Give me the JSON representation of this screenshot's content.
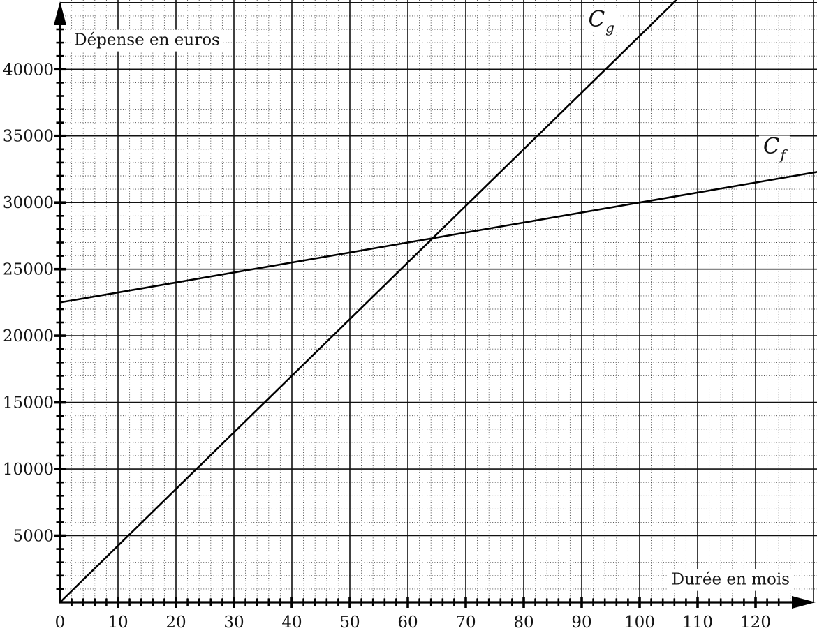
{
  "chart_data": {
    "type": "line",
    "title": "",
    "xlabel": "Durée en mois",
    "ylabel": "Dépense en euros",
    "xlim": [
      0,
      130.6
    ],
    "ylim": [
      0,
      45200
    ],
    "x_tick_labels": [
      0,
      10,
      20,
      30,
      40,
      50,
      60,
      70,
      80,
      90,
      100,
      110,
      120
    ],
    "y_tick_labels": [
      5000,
      10000,
      15000,
      20000,
      25000,
      30000,
      35000,
      40000
    ],
    "x_grid_lines": [
      10,
      20,
      30,
      40,
      50,
      60,
      70,
      80,
      90,
      100,
      110,
      120,
      130
    ],
    "y_grid_lines": [
      5000,
      10000,
      15000,
      20000,
      25000,
      30000,
      35000,
      40000,
      45000
    ],
    "x_minor_step": 2,
    "y_minor_step": 1000,
    "grid": {
      "major": "solid",
      "minor": "dotted",
      "legend": "none"
    },
    "colors": {
      "line": "#000000",
      "grid_major": "#111111",
      "grid_minor": "#3c3c3c",
      "text": "#141414",
      "background": "#ffffff"
    },
    "xlabel_anchor": {
      "x": 115.7,
      "y": 1680
    },
    "ylabel_anchor": {
      "x": 15,
      "y": 42150
    },
    "series": [
      {
        "name": "Cg",
        "label_main": "C",
        "label_sub": "g",
        "label_anchor": {
          "x": 93.4,
          "y": 43680
        },
        "color": "#000000",
        "points": [
          [
            0,
            0
          ],
          [
            20,
            8500
          ],
          [
            40,
            17000
          ],
          [
            60,
            25500
          ],
          [
            80,
            34000
          ],
          [
            100,
            42500
          ],
          [
            106.35,
            45200
          ]
        ]
      },
      {
        "name": "Cf",
        "label_main": "C",
        "label_sub": "f",
        "label_anchor": {
          "x": 123.25,
          "y": 34150
        },
        "color": "#000000",
        "points": [
          [
            0,
            22500
          ],
          [
            20,
            24000
          ],
          [
            40,
            25500
          ],
          [
            60,
            27000
          ],
          [
            80,
            28500
          ],
          [
            100,
            30000
          ],
          [
            120,
            31500
          ],
          [
            130.6,
            32295
          ]
        ]
      }
    ],
    "visible_intersection": {
      "x": 64.3,
      "y": 27300
    }
  }
}
